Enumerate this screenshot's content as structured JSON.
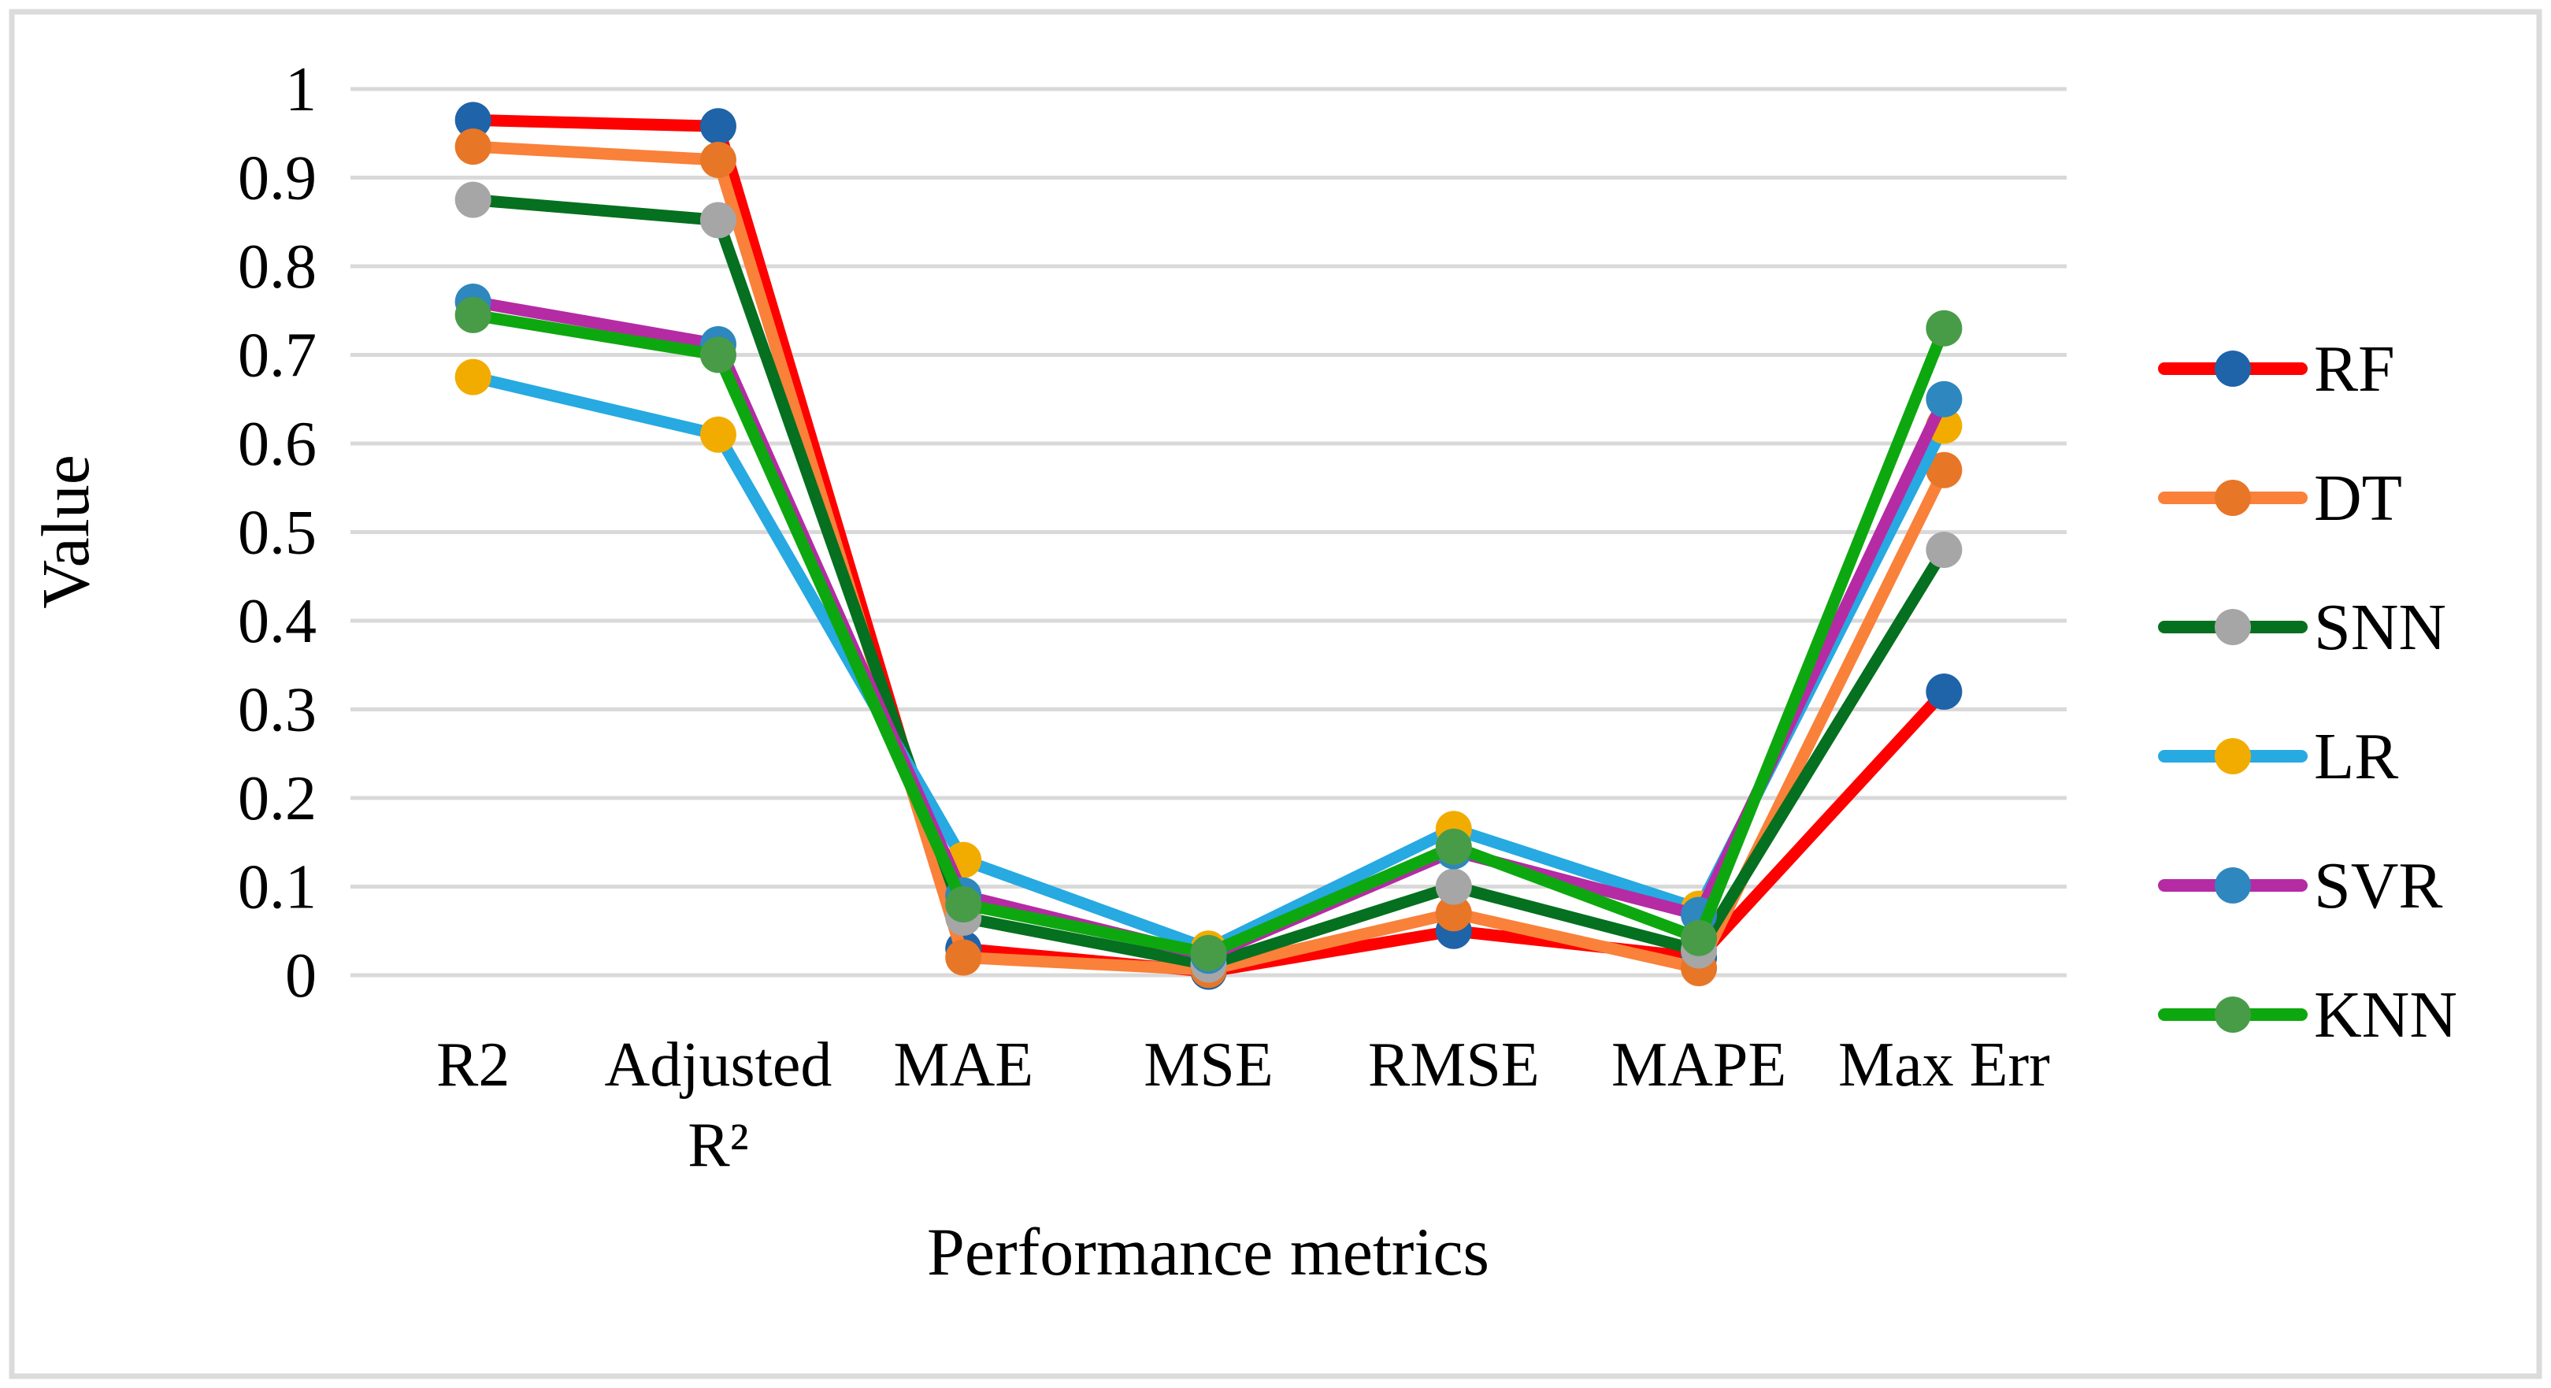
{
  "figure": {
    "background": "#ffffff",
    "border_color": "#dbdbdb",
    "gridline_color": "#d9d9d9"
  },
  "chart_data": {
    "type": "line",
    "title": "",
    "xlabel": "Performance metrics",
    "ylabel": "Value",
    "categories": [
      "R2",
      "Adjusted\nR²",
      "MAE",
      "MSE",
      "RMSE",
      "MAPE",
      "Max Err"
    ],
    "y_ticks": [
      "1",
      "0.9",
      "0.8",
      "0.7",
      "0.6",
      "0.5",
      "0.4",
      "0.3",
      "0.2",
      "0.1",
      "0"
    ],
    "ylim": [
      0,
      1
    ],
    "grid": true,
    "legend_position": "right",
    "series": [
      {
        "name": "RF",
        "line_color": "#fe0000",
        "marker_color": "#1f63a9",
        "values": [
          0.965,
          0.958,
          0.03,
          0.004,
          0.05,
          0.02,
          0.32
        ]
      },
      {
        "name": "DT",
        "line_color": "#f9813a",
        "marker_color": "#e87627",
        "values": [
          0.935,
          0.92,
          0.02,
          0.006,
          0.07,
          0.008,
          0.57
        ]
      },
      {
        "name": "SNN",
        "line_color": "#05701f",
        "marker_color": "#a6a6a6",
        "values": [
          0.875,
          0.852,
          0.065,
          0.012,
          0.1,
          0.028,
          0.48
        ]
      },
      {
        "name": "LR",
        "line_color": "#27a9e1",
        "marker_color": "#f2ac00",
        "values": [
          0.675,
          0.61,
          0.13,
          0.03,
          0.165,
          0.075,
          0.62
        ]
      },
      {
        "name": "SVR",
        "line_color": "#b52ba4",
        "marker_color": "#2e87be",
        "values": [
          0.76,
          0.712,
          0.09,
          0.022,
          0.14,
          0.068,
          0.65
        ]
      },
      {
        "name": "KNN",
        "line_color": "#0da80f",
        "marker_color": "#489c48",
        "values": [
          0.745,
          0.7,
          0.08,
          0.025,
          0.145,
          0.042,
          0.73
        ]
      }
    ]
  }
}
